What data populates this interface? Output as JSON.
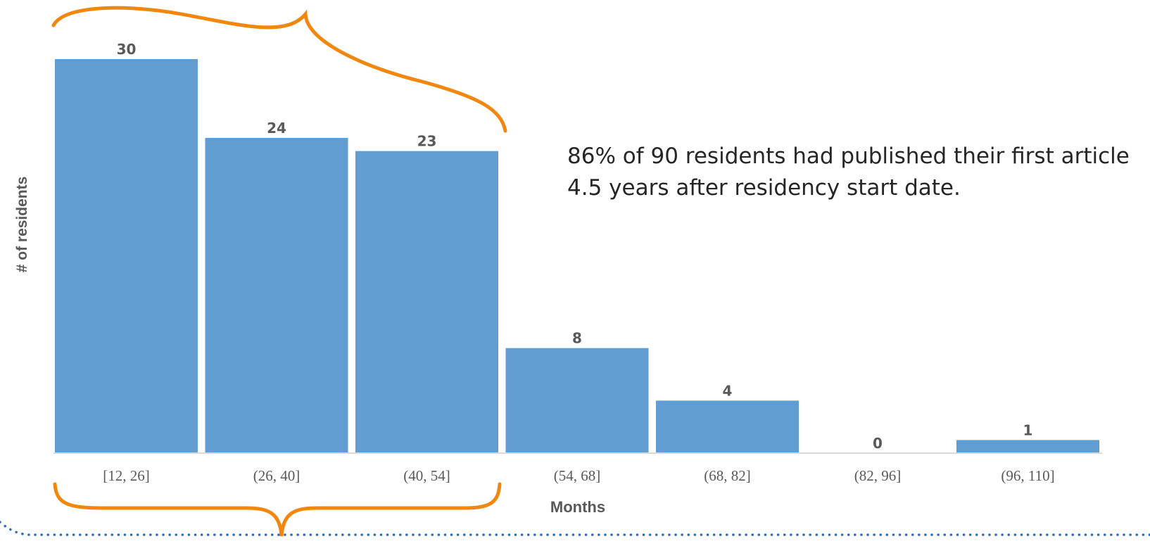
{
  "chart_data": {
    "type": "bar",
    "categories": [
      "[12, 26]",
      "(26, 40]",
      "(40, 54]",
      "(54, 68]",
      "(68, 82]",
      "(82, 96]",
      "(96, 110]"
    ],
    "values": [
      30,
      24,
      23,
      8,
      4,
      0,
      1
    ],
    "xlabel": "Months",
    "ylabel": "# of residents",
    "ylim": [
      0,
      30
    ],
    "grid": false,
    "bar_color": "#619DD0",
    "brace_color": "#F2870F",
    "dotted_line_color": "#2E6DB4",
    "annotation": "86% of 90 residents had published their first article 4.5 years after residency start date."
  }
}
